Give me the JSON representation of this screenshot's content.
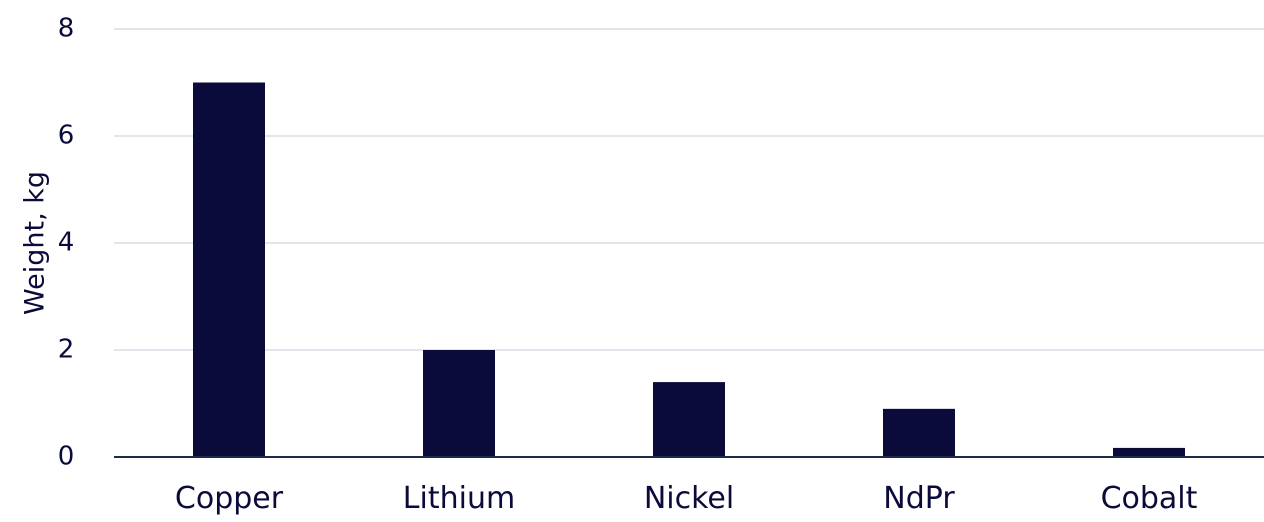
{
  "chart_data": {
    "type": "bar",
    "categories": [
      "Copper",
      "Lithium",
      "Nickel",
      "NdPr",
      "Cobalt"
    ],
    "values": [
      7.0,
      2.0,
      1.4,
      0.9,
      0.17
    ],
    "title": "",
    "xlabel": "",
    "ylabel": "Weight, kg",
    "ylim": [
      0,
      8
    ],
    "yticks": [
      0,
      2,
      4,
      6,
      8
    ],
    "grid": true,
    "bar_color": "#0b0b3b",
    "grid_color": "#d6dde6"
  }
}
